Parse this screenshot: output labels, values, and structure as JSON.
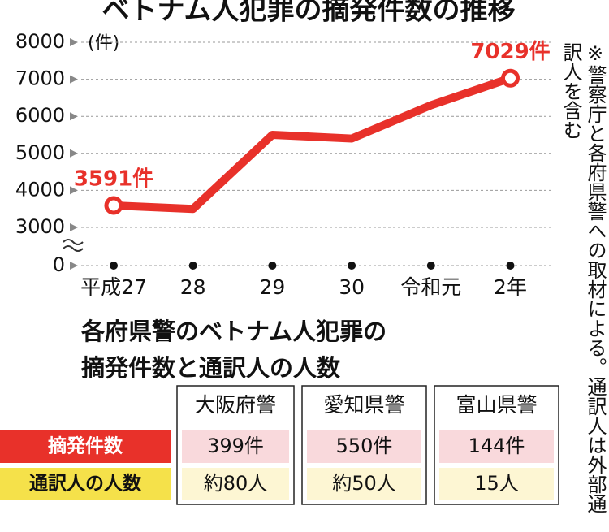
{
  "chart_data": {
    "type": "line",
    "title": "ベトナム人犯罪の摘発件数の推移",
    "y_unit": "(件)",
    "categories": [
      "平成27",
      "28",
      "29",
      "30",
      "令和元",
      "2年"
    ],
    "series": [
      {
        "color": "#e8312a",
        "values": [
          3591,
          3500,
          5500,
          5400,
          6300,
          7029
        ],
        "value_labels": [
          "3591件",
          null,
          null,
          null,
          null,
          "7029件"
        ]
      }
    ],
    "ylim": [
      3000,
      8000
    ],
    "yticks": [
      0,
      3000,
      4000,
      5000,
      6000,
      7000,
      8000
    ],
    "axis_break": true,
    "grid": true
  },
  "note": "※警察庁と各府県警への取材による。通訳人は外部通訳人を含む",
  "table": {
    "title_lines": [
      "各府県警のベトナム人犯罪の",
      "摘発件数と通訳人の人数"
    ],
    "columns": [
      "大阪府警",
      "愛知県警",
      "富山県警"
    ],
    "rows": [
      {
        "label": "摘発件数",
        "cells": [
          "399件",
          "550件",
          "144件"
        ]
      },
      {
        "label": "通訳人の人数",
        "cells": [
          "約80人",
          "約50人",
          "15人"
        ]
      }
    ]
  }
}
